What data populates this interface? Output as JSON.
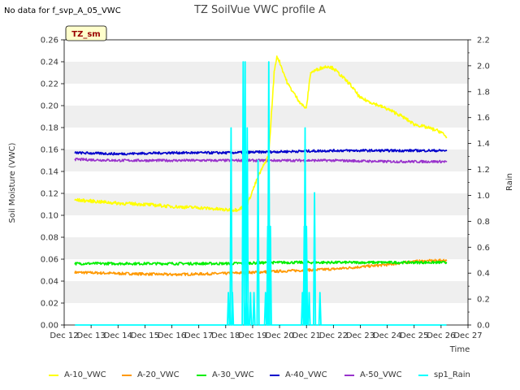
{
  "note": "No data for f_svp_A_05_VWC",
  "chart_data": {
    "type": "line",
    "title": "TZ SoilVue VWC profile A",
    "site_label": "TZ_sm",
    "xlabel": "Time",
    "ylabel": "Soil Moisture (VWC)",
    "y2label": "Rain",
    "xlim": [
      12,
      27
    ],
    "ylim": [
      0,
      0.26
    ],
    "y2lim": [
      0,
      2.2
    ],
    "grid_bands": true,
    "legend_position": "bottom",
    "x_ticks": [
      {
        "v": 12,
        "label": "Dec 12"
      },
      {
        "v": 13,
        "label": "Dec 13"
      },
      {
        "v": 14,
        "label": "Dec 14"
      },
      {
        "v": 15,
        "label": "Dec 15"
      },
      {
        "v": 16,
        "label": "Dec 16"
      },
      {
        "v": 17,
        "label": "Dec 17"
      },
      {
        "v": 18,
        "label": "Dec 18"
      },
      {
        "v": 19,
        "label": "Dec 19"
      },
      {
        "v": 20,
        "label": "Dec 20"
      },
      {
        "v": 21,
        "label": "Dec 21"
      },
      {
        "v": 22,
        "label": "Dec 22"
      },
      {
        "v": 23,
        "label": "Dec 23"
      },
      {
        "v": 24,
        "label": "Dec 24"
      },
      {
        "v": 25,
        "label": "Dec 25"
      },
      {
        "v": 26,
        "label": "Dec 26"
      },
      {
        "v": 27,
        "label": "Dec 27"
      }
    ],
    "y_ticks": [
      {
        "v": 0.0,
        "label": "0.00"
      },
      {
        "v": 0.02,
        "label": "0.02"
      },
      {
        "v": 0.04,
        "label": "0.04"
      },
      {
        "v": 0.06,
        "label": "0.06"
      },
      {
        "v": 0.08,
        "label": "0.08"
      },
      {
        "v": 0.1,
        "label": "0.10"
      },
      {
        "v": 0.12,
        "label": "0.12"
      },
      {
        "v": 0.14,
        "label": "0.14"
      },
      {
        "v": 0.16,
        "label": "0.16"
      },
      {
        "v": 0.18,
        "label": "0.18"
      },
      {
        "v": 0.2,
        "label": "0.20"
      },
      {
        "v": 0.22,
        "label": "0.22"
      },
      {
        "v": 0.24,
        "label": "0.24"
      },
      {
        "v": 0.26,
        "label": "0.26"
      }
    ],
    "y2_ticks": [
      {
        "v": 0.0,
        "label": "0.0"
      },
      {
        "v": 0.2,
        "label": "0.2"
      },
      {
        "v": 0.4,
        "label": "0.4"
      },
      {
        "v": 0.6,
        "label": "0.6"
      },
      {
        "v": 0.8,
        "label": "0.8"
      },
      {
        "v": 1.0,
        "label": "1.0"
      },
      {
        "v": 1.2,
        "label": "1.2"
      },
      {
        "v": 1.4,
        "label": "1.4"
      },
      {
        "v": 1.6,
        "label": "1.6"
      },
      {
        "v": 1.8,
        "label": "1.8"
      },
      {
        "v": 2.0,
        "label": "2.0"
      },
      {
        "v": 2.2,
        "label": "2.2"
      }
    ],
    "series": [
      {
        "name": "A-10_VWC",
        "color": "#ffff00",
        "axis": "left",
        "x": [
          12.4,
          13,
          14,
          15,
          16,
          17,
          17.5,
          18,
          18.4,
          18.6,
          18.8,
          19.2,
          19.6,
          19.8,
          19.9,
          20.0,
          20.3,
          20.7,
          20.9,
          21.0,
          21.15,
          21.5,
          21.8,
          22.0,
          22.3,
          22.6,
          23.0,
          23.5,
          24.0,
          24.5,
          25.0,
          25.5,
          26.0,
          26.2
        ],
        "values": [
          0.114,
          0.113,
          0.111,
          0.11,
          0.108,
          0.107,
          0.106,
          0.105,
          0.105,
          0.107,
          0.11,
          0.135,
          0.155,
          0.23,
          0.245,
          0.24,
          0.22,
          0.205,
          0.199,
          0.198,
          0.23,
          0.234,
          0.236,
          0.234,
          0.227,
          0.22,
          0.207,
          0.202,
          0.197,
          0.191,
          0.183,
          0.18,
          0.176,
          0.171
        ],
        "noise": 0.0015
      },
      {
        "name": "A-20_VWC",
        "color": "#ff9900",
        "axis": "left",
        "x": [
          12.4,
          14,
          16,
          18,
          19,
          20,
          21,
          22,
          23,
          24,
          25,
          26.2
        ],
        "values": [
          0.048,
          0.047,
          0.046,
          0.047,
          0.048,
          0.049,
          0.05,
          0.051,
          0.053,
          0.055,
          0.058,
          0.059
        ],
        "noise": 0.0012
      },
      {
        "name": "A-30_VWC",
        "color": "#00ee00",
        "axis": "left",
        "x": [
          12.4,
          14,
          16,
          18,
          20,
          22,
          24,
          26.2
        ],
        "values": [
          0.056,
          0.056,
          0.056,
          0.056,
          0.057,
          0.057,
          0.057,
          0.057
        ],
        "noise": 0.0012
      },
      {
        "name": "A-40_VWC",
        "color": "#0000cc",
        "axis": "left",
        "x": [
          12.4,
          14,
          16,
          18,
          20,
          22,
          24,
          26.2
        ],
        "values": [
          0.157,
          0.156,
          0.157,
          0.157,
          0.158,
          0.159,
          0.159,
          0.159
        ],
        "noise": 0.0011
      },
      {
        "name": "A-50_VWC",
        "color": "#9933cc",
        "axis": "left",
        "x": [
          12.4,
          14,
          16,
          18,
          20,
          22,
          24,
          26.2
        ],
        "values": [
          0.151,
          0.15,
          0.15,
          0.15,
          0.15,
          0.15,
          0.149,
          0.149
        ],
        "noise": 0.0011
      },
      {
        "name": "sp1_Rain",
        "color": "#00ffff",
        "axis": "right",
        "kind": "spikes",
        "x": [
          18.1,
          18.2,
          18.25,
          18.65,
          18.72,
          18.76,
          18.8,
          18.92,
          19.05,
          19.2,
          19.48,
          19.56,
          19.6,
          19.66,
          20.85,
          20.92,
          20.95,
          21.0,
          21.1,
          21.3,
          21.5
        ],
        "values": [
          0.25,
          1.52,
          0.25,
          2.03,
          2.03,
          0.25,
          1.52,
          0.25,
          0.25,
          1.27,
          0.25,
          0.76,
          2.03,
          0.76,
          0.25,
          0.76,
          1.52,
          0.76,
          0.25,
          1.02,
          0.25
        ]
      }
    ]
  }
}
